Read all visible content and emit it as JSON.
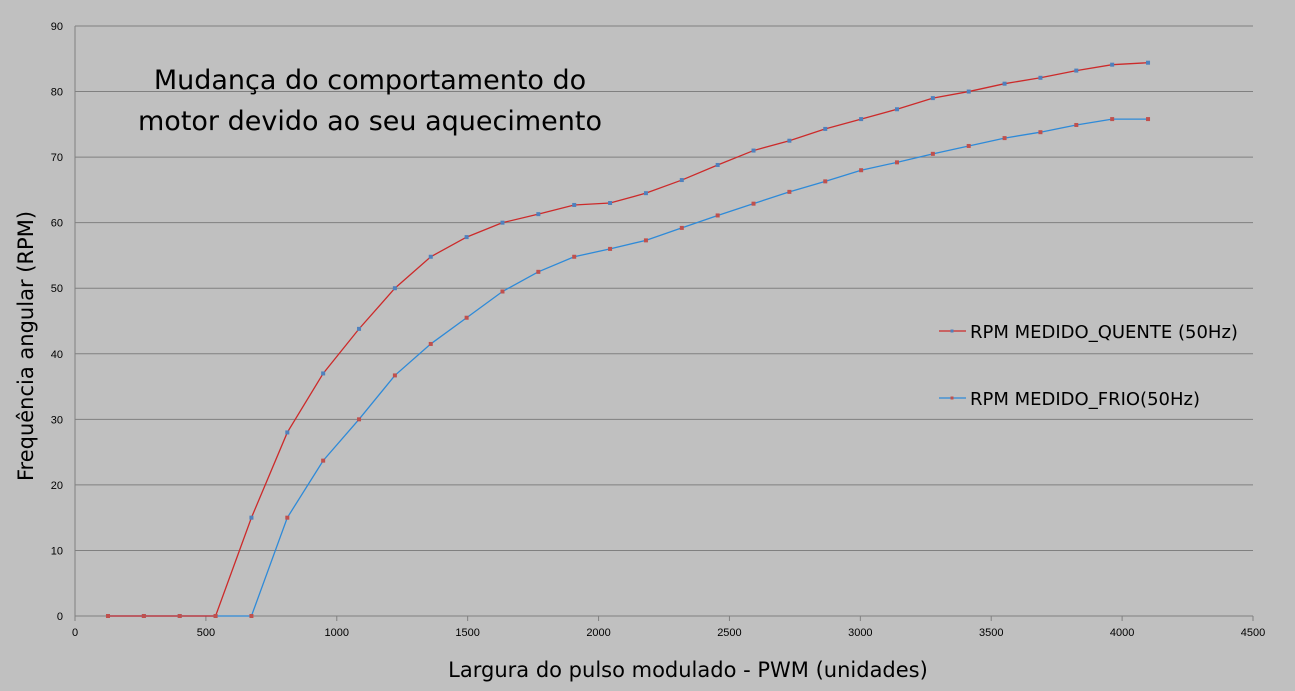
{
  "chart_data": {
    "type": "line",
    "title": [
      "Mudança do comportamento do",
      "motor devido ao seu aquecimento"
    ],
    "xlabel": "Largura do pulso modulado - PWM (unidades)",
    "ylabel": "Frequência angular (RPM)",
    "xlim": [
      0,
      4500
    ],
    "ylim": [
      0,
      90
    ],
    "xticks": [
      0,
      500,
      1000,
      1500,
      2000,
      2500,
      3000,
      3500,
      4000,
      4500
    ],
    "yticks": [
      0,
      10,
      20,
      30,
      40,
      50,
      60,
      70,
      80,
      90
    ],
    "grid": "horizontal",
    "legend_position": "right",
    "background": "#c0c0c0",
    "x": [
      126,
      263,
      400,
      537,
      674,
      811,
      948,
      1085,
      1222,
      1359,
      1496,
      1633,
      1770,
      1907,
      2044,
      2181,
      2318,
      2455,
      2592,
      2729,
      2866,
      3003,
      3140,
      3277,
      3414,
      3551,
      3688,
      3825,
      3962,
      4099
    ],
    "series": [
      {
        "name": "RPM MEDIDO_QUENTE (50Hz)",
        "line_color": "#cc2a2a",
        "marker_color": "#4f81bd",
        "values": [
          0,
          0,
          0,
          0,
          15,
          28,
          37,
          43.8,
          50,
          54.8,
          57.8,
          60,
          61.3,
          62.7,
          63,
          64.5,
          66.5,
          68.8,
          71,
          72.5,
          74.3,
          75.8,
          77.3,
          79,
          80,
          81.2,
          82.1,
          83.2,
          84.1,
          84.4
        ]
      },
      {
        "name": "RPM MEDIDO_FRIO(50Hz)",
        "line_color": "#2e8ad8",
        "marker_color": "#c0504d",
        "values": [
          0,
          0,
          0,
          0,
          0,
          15,
          23.7,
          30,
          36.7,
          41.5,
          45.5,
          49.5,
          52.5,
          54.8,
          56,
          57.3,
          59.2,
          61.1,
          62.9,
          64.7,
          66.3,
          68,
          69.2,
          70.5,
          71.7,
          72.9,
          73.8,
          74.9,
          75.8,
          75.8
        ]
      }
    ]
  }
}
